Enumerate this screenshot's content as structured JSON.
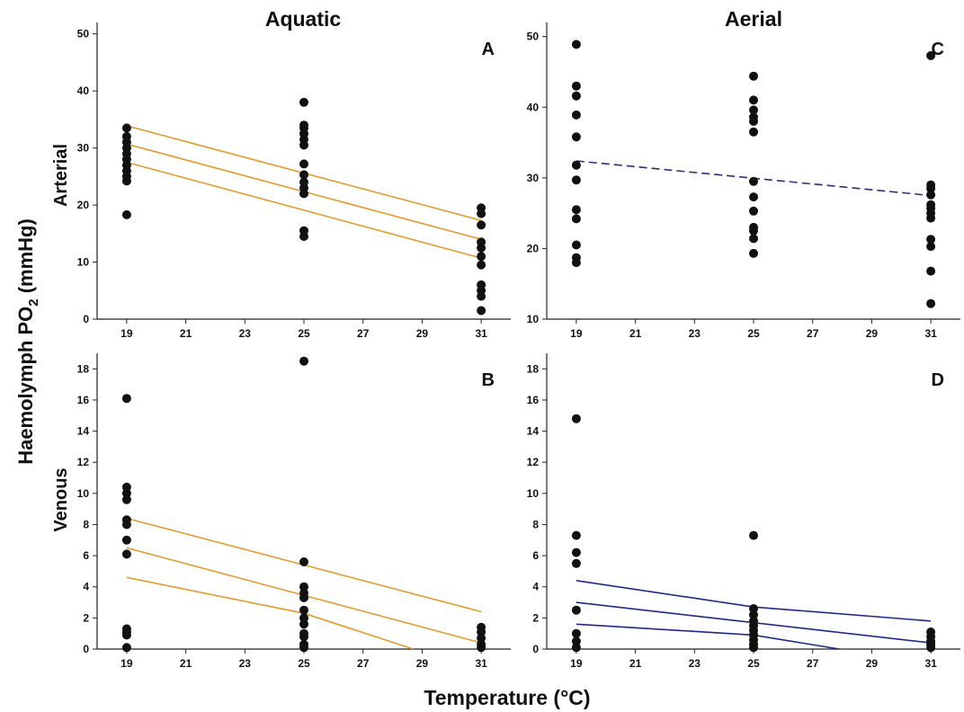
{
  "figure": {
    "y_axis_label_main": "Haemolymph PO",
    "y_axis_label_sub": "2",
    "y_axis_label_unit": " (mmHg)",
    "x_axis_label": "Temperature (°C)",
    "column_titles": [
      "Aquatic",
      "Aerial"
    ],
    "row_titles": [
      "Arterial",
      "Venous"
    ]
  },
  "chart_data": [
    {
      "type": "scatter",
      "panel": "A",
      "column": "Aquatic",
      "row": "Arterial",
      "xticks": [
        19,
        21,
        23,
        25,
        27,
        29,
        31
      ],
      "yticks": [
        0,
        10,
        20,
        30,
        40,
        50
      ],
      "xlim": [
        18,
        32
      ],
      "ylim": [
        0,
        52
      ],
      "points": [
        [
          19,
          18.3
        ],
        [
          19,
          24.2
        ],
        [
          19,
          25.0
        ],
        [
          19,
          26.0
        ],
        [
          19,
          27.0
        ],
        [
          19,
          28.0
        ],
        [
          19,
          29.0
        ],
        [
          19,
          30.0
        ],
        [
          19,
          31.0
        ],
        [
          19,
          32.0
        ],
        [
          19,
          33.5
        ],
        [
          25,
          14.5
        ],
        [
          25,
          15.5
        ],
        [
          25,
          22.0
        ],
        [
          25,
          23.0
        ],
        [
          25,
          24.0
        ],
        [
          25,
          25.3
        ],
        [
          25,
          27.2
        ],
        [
          25,
          30.5
        ],
        [
          25,
          31.5
        ],
        [
          25,
          32.5
        ],
        [
          25,
          33.5
        ],
        [
          25,
          34.0
        ],
        [
          25,
          38.0
        ],
        [
          31,
          1.5
        ],
        [
          31,
          4.0
        ],
        [
          31,
          5.0
        ],
        [
          31,
          6.0
        ],
        [
          31,
          9.5
        ],
        [
          31,
          11.0
        ],
        [
          31,
          12.5
        ],
        [
          31,
          13.5
        ],
        [
          31,
          16.5
        ],
        [
          31,
          18.5
        ],
        [
          31,
          19.5
        ]
      ],
      "fit": {
        "style": "solid",
        "color": "#e59a2c",
        "lines": [
          {
            "x": [
              19,
              31
            ],
            "y": [
              30.7,
              14.0
            ]
          },
          {
            "x": [
              19,
              31
            ],
            "y": [
              33.9,
              17.3
            ]
          },
          {
            "x": [
              19,
              31
            ],
            "y": [
              27.5,
              10.7
            ]
          }
        ]
      }
    },
    {
      "type": "scatter",
      "panel": "B",
      "column": "Aquatic",
      "row": "Venous",
      "xticks": [
        19,
        21,
        23,
        25,
        27,
        29,
        31
      ],
      "yticks": [
        0,
        2,
        4,
        6,
        8,
        10,
        12,
        14,
        16,
        18
      ],
      "xlim": [
        18,
        32
      ],
      "ylim": [
        0,
        19
      ],
      "points": [
        [
          19,
          0.1
        ],
        [
          19,
          0.9
        ],
        [
          19,
          1.1
        ],
        [
          19,
          1.3
        ],
        [
          19,
          6.1
        ],
        [
          19,
          7.0
        ],
        [
          19,
          8.0
        ],
        [
          19,
          8.3
        ],
        [
          19,
          9.6
        ],
        [
          19,
          10.0
        ],
        [
          19,
          10.4
        ],
        [
          19,
          16.1
        ],
        [
          25,
          0.1
        ],
        [
          25,
          0.3
        ],
        [
          25,
          0.8
        ],
        [
          25,
          1.0
        ],
        [
          25,
          1.6
        ],
        [
          25,
          2.0
        ],
        [
          25,
          2.5
        ],
        [
          25,
          3.3
        ],
        [
          25,
          3.6
        ],
        [
          25,
          4.0
        ],
        [
          25,
          5.6
        ],
        [
          25,
          18.5
        ],
        [
          31,
          0.1
        ],
        [
          31,
          0.3
        ],
        [
          31,
          0.7
        ],
        [
          31,
          1.1
        ],
        [
          31,
          1.4
        ]
      ],
      "fit": {
        "style": "solid",
        "color": "#e59a2c",
        "lines": [
          {
            "x": [
              19,
              31
            ],
            "y": [
              6.5,
              0.4
            ]
          },
          {
            "x": [
              19,
              31
            ],
            "y": [
              8.4,
              2.4
            ]
          },
          {
            "x": [
              19,
              25,
              28.7
            ],
            "y": [
              4.6,
              2.3,
              0.0
            ]
          }
        ]
      }
    },
    {
      "type": "scatter",
      "panel": "C",
      "column": "Aerial",
      "row": "Arterial",
      "xticks": [
        19,
        21,
        23,
        25,
        27,
        29,
        31
      ],
      "yticks": [
        10,
        20,
        30,
        40,
        50
      ],
      "xlim": [
        18,
        32
      ],
      "ylim": [
        10,
        52
      ],
      "points": [
        [
          19,
          18.0
        ],
        [
          19,
          18.7
        ],
        [
          19,
          20.5
        ],
        [
          19,
          24.2
        ],
        [
          19,
          25.5
        ],
        [
          19,
          29.7
        ],
        [
          19,
          31.8
        ],
        [
          19,
          35.8
        ],
        [
          19,
          38.9
        ],
        [
          19,
          41.6
        ],
        [
          19,
          43.0
        ],
        [
          19,
          48.9
        ],
        [
          25,
          19.3
        ],
        [
          25,
          21.4
        ],
        [
          25,
          22.5
        ],
        [
          25,
          23.0
        ],
        [
          25,
          25.3
        ],
        [
          25,
          27.3
        ],
        [
          25,
          29.5
        ],
        [
          25,
          36.5
        ],
        [
          25,
          38.0
        ],
        [
          25,
          38.6
        ],
        [
          25,
          39.6
        ],
        [
          25,
          41.0
        ],
        [
          25,
          44.4
        ],
        [
          31,
          12.2
        ],
        [
          31,
          16.8
        ],
        [
          31,
          20.3
        ],
        [
          31,
          21.3
        ],
        [
          31,
          24.3
        ],
        [
          31,
          25.0
        ],
        [
          31,
          25.7
        ],
        [
          31,
          26.2
        ],
        [
          31,
          27.6
        ],
        [
          31,
          28.5
        ],
        [
          31,
          29.0
        ],
        [
          31,
          47.3
        ]
      ],
      "fit": {
        "style": "dashed",
        "color": "#27317a",
        "lines": [
          {
            "x": [
              19,
              31
            ],
            "y": [
              32.4,
              27.5
            ]
          }
        ]
      }
    },
    {
      "type": "scatter",
      "panel": "D",
      "column": "Aerial",
      "row": "Venous",
      "xticks": [
        19,
        21,
        23,
        25,
        27,
        29,
        31
      ],
      "yticks": [
        0,
        2,
        4,
        6,
        8,
        10,
        12,
        14,
        16,
        18
      ],
      "xlim": [
        18,
        32
      ],
      "ylim": [
        0,
        19
      ],
      "points": [
        [
          19,
          0.1
        ],
        [
          19,
          0.5
        ],
        [
          19,
          1.0
        ],
        [
          19,
          2.5
        ],
        [
          19,
          5.5
        ],
        [
          19,
          6.2
        ],
        [
          19,
          7.3
        ],
        [
          19,
          14.8
        ],
        [
          25,
          0.1
        ],
        [
          25,
          0.3
        ],
        [
          25,
          0.6
        ],
        [
          25,
          0.9
        ],
        [
          25,
          1.2
        ],
        [
          25,
          1.5
        ],
        [
          25,
          1.8
        ],
        [
          25,
          2.2
        ],
        [
          25,
          2.6
        ],
        [
          25,
          7.3
        ],
        [
          31,
          0.1
        ],
        [
          31,
          0.3
        ],
        [
          31,
          0.5
        ],
        [
          31,
          0.8
        ],
        [
          31,
          1.1
        ]
      ],
      "fit": {
        "style": "solid",
        "color": "#1e2a8a",
        "lines": [
          {
            "x": [
              19,
              31
            ],
            "y": [
              3.0,
              0.4
            ]
          },
          {
            "x": [
              19,
              25,
              31
            ],
            "y": [
              4.4,
              2.7,
              1.8
            ]
          },
          {
            "x": [
              19,
              25,
              27.9
            ],
            "y": [
              1.6,
              0.9,
              0.0
            ]
          }
        ]
      }
    }
  ]
}
